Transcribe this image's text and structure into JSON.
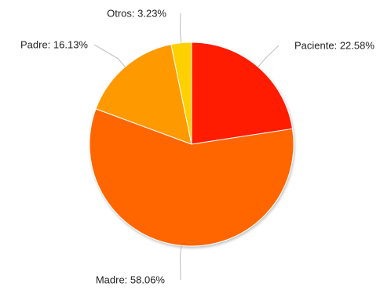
{
  "chart_data": {
    "type": "pie",
    "slices": [
      {
        "name": "Paciente",
        "value": 22.58,
        "label": "Paciente: 22.58%",
        "color": "#ff1a00"
      },
      {
        "name": "Madre",
        "value": 58.06,
        "label": "Madre: 58.06%",
        "color": "#ff6600"
      },
      {
        "name": "Padre",
        "value": 16.13,
        "label": "Padre: 16.13%",
        "color": "#ff9900"
      },
      {
        "name": "Otros",
        "value": 3.23,
        "label": "Otros: 3.23%",
        "color": "#ffd000"
      }
    ],
    "start_angle": "12 o'clock",
    "direction": "clockwise",
    "legend": "none",
    "value_unit": "%"
  }
}
